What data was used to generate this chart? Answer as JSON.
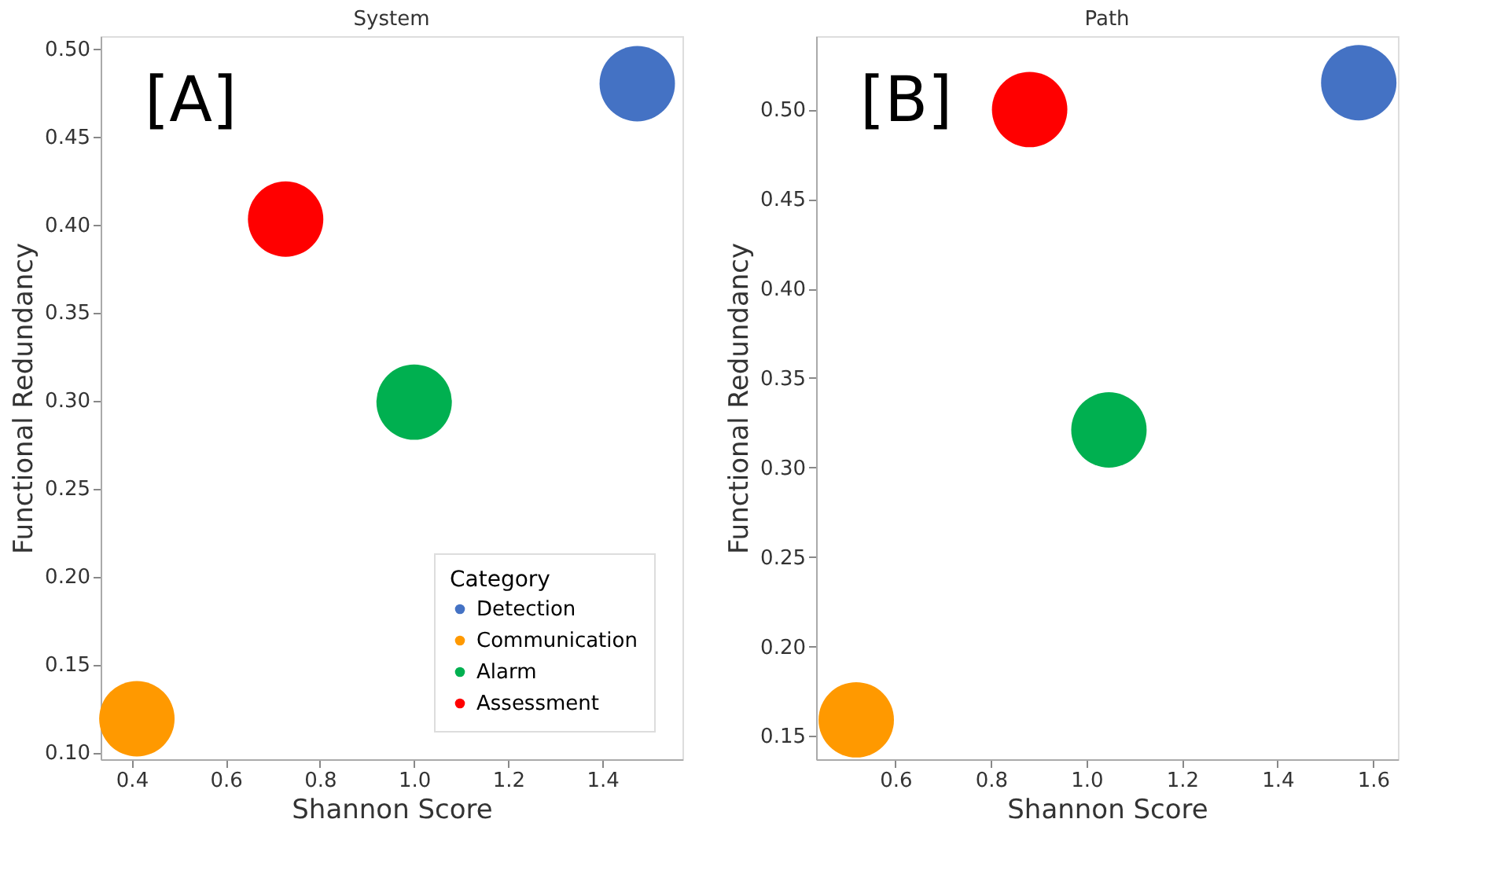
{
  "chart_data": [
    {
      "type": "scatter",
      "title": "System",
      "xlabel": "Shannon Score",
      "ylabel": "Functional Redundancy",
      "legend_title": "Category",
      "legend": "bottom right",
      "marker": "circle",
      "grid": false,
      "annotations": [
        "[A]"
      ],
      "xlim": [
        0.334,
        1.57
      ],
      "xticks": [
        {
          "value": 0.4,
          "label": "0.4"
        },
        {
          "value": 0.6,
          "label": "0.6"
        },
        {
          "value": 0.8,
          "label": "0.8"
        },
        {
          "value": 1.0,
          "label": "1.0"
        },
        {
          "value": 1.2,
          "label": "1.2"
        },
        {
          "value": 1.4,
          "label": "1.4"
        }
      ],
      "ylim": [
        0.096,
        0.507
      ],
      "yticks": [
        {
          "value": 0.1,
          "label": "0.10"
        },
        {
          "value": 0.15,
          "label": "0.15"
        },
        {
          "value": 0.2,
          "label": "0.20"
        },
        {
          "value": 0.25,
          "label": "0.25"
        },
        {
          "value": 0.3,
          "label": "0.30"
        },
        {
          "value": 0.35,
          "label": "0.35"
        },
        {
          "value": 0.4,
          "label": "0.40"
        },
        {
          "value": 0.45,
          "label": "0.45"
        },
        {
          "value": 0.5,
          "label": "0.50"
        }
      ],
      "series": [
        {
          "name": "Detection",
          "color": "#4472c4",
          "x": [
            1.474
          ],
          "values": [
            0.48
          ]
        },
        {
          "name": "Communication",
          "color": "#ff9900",
          "x": [
            0.411
          ],
          "values": [
            0.119
          ]
        },
        {
          "name": "Alarm",
          "color": "#00b050",
          "x": [
            1.0
          ],
          "values": [
            0.299
          ]
        },
        {
          "name": "Assessment",
          "color": "#ff0000",
          "x": [
            0.727
          ],
          "values": [
            0.403
          ]
        }
      ]
    },
    {
      "type": "scatter",
      "title": "Path",
      "xlabel": "Shannon Score",
      "ylabel": "Functional Redundancy",
      "legend": false,
      "marker": "circle",
      "grid": false,
      "annotations": [
        "[B]"
      ],
      "xlim": [
        0.434,
        1.652
      ],
      "xticks": [
        {
          "value": 0.6,
          "label": "0.6"
        },
        {
          "value": 0.8,
          "label": "0.8"
        },
        {
          "value": 1.0,
          "label": "1.0"
        },
        {
          "value": 1.2,
          "label": "1.2"
        },
        {
          "value": 1.4,
          "label": "1.4"
        },
        {
          "value": 1.6,
          "label": "1.6"
        }
      ],
      "ylim": [
        0.137,
        0.541
      ],
      "yticks": [
        {
          "value": 0.15,
          "label": "0.15"
        },
        {
          "value": 0.2,
          "label": "0.20"
        },
        {
          "value": 0.25,
          "label": "0.25"
        },
        {
          "value": 0.3,
          "label": "0.30"
        },
        {
          "value": 0.35,
          "label": "0.35"
        },
        {
          "value": 0.4,
          "label": "0.40"
        },
        {
          "value": 0.45,
          "label": "0.45"
        },
        {
          "value": 0.5,
          "label": "0.50"
        }
      ],
      "series": [
        {
          "color": "#4472c4",
          "x": [
            1.57
          ],
          "values": [
            0.515
          ]
        },
        {
          "color": "#ff9900",
          "x": [
            0.518
          ],
          "values": [
            0.159
          ]
        },
        {
          "color": "#00b050",
          "x": [
            1.047
          ],
          "values": [
            0.321
          ]
        },
        {
          "color": "#ff0000",
          "x": [
            0.881
          ],
          "values": [
            0.5
          ]
        }
      ]
    }
  ]
}
